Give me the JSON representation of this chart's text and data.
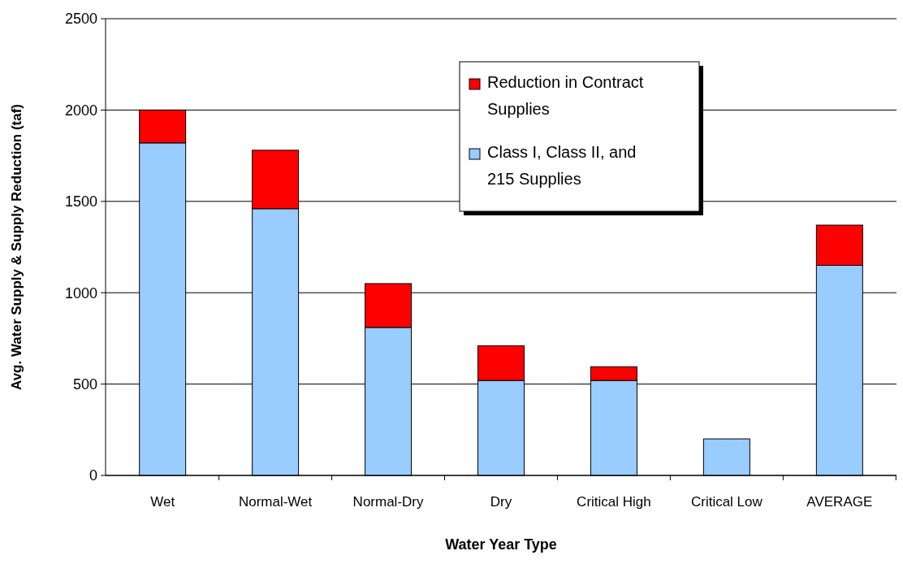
{
  "chart_data": {
    "type": "bar",
    "xlabel": "Water Year Type",
    "ylabel": "Avg. Water Supply & Supply Reduction (taf)",
    "categories": [
      "Wet",
      "Normal-Wet",
      "Normal-Dry",
      "Dry",
      "Critical High",
      "Critical Low",
      "AVERAGE"
    ],
    "series": [
      {
        "name": "Class I, Class II, and 215 Supplies",
        "color": "#99ccff",
        "values": [
          1820,
          1460,
          810,
          520,
          520,
          200,
          1150
        ]
      },
      {
        "name": "Reduction in Contract Supplies",
        "color": "#ff0000",
        "values": [
          180,
          320,
          240,
          190,
          75,
          0,
          220
        ]
      }
    ],
    "stacked": true,
    "ylim": [
      0,
      2500
    ],
    "yticks": [
      0,
      500,
      1000,
      1500,
      2000,
      2500
    ],
    "grid": "y",
    "legend": "top right"
  }
}
